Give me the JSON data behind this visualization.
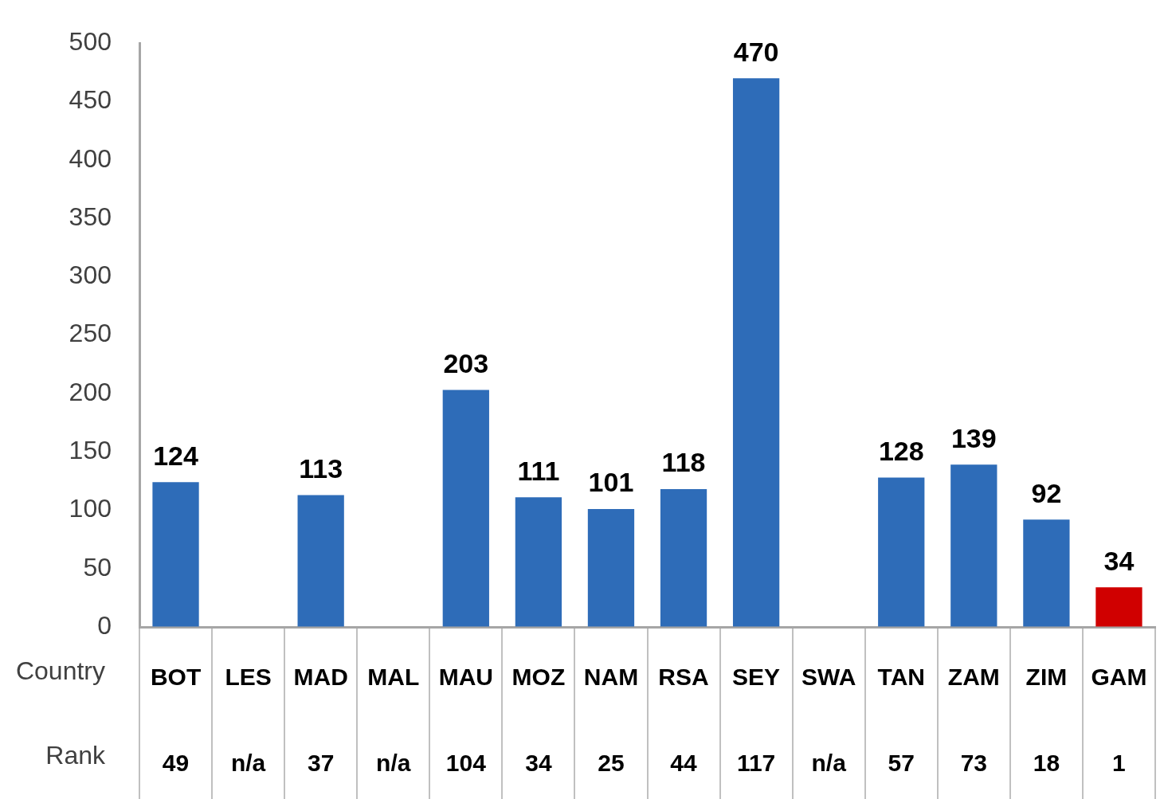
{
  "chart_data": {
    "type": "bar",
    "xlabel": "Country",
    "categories": [
      "BOT",
      "LES",
      "MAD",
      "MAL",
      "MAU",
      "MOZ",
      "NAM",
      "RSA",
      "SEY",
      "SWA",
      "TAN",
      "ZAM",
      "ZIM",
      "GAM"
    ],
    "values": [
      124,
      null,
      113,
      null,
      203,
      111,
      101,
      118,
      470,
      null,
      128,
      139,
      92,
      34
    ],
    "colors": [
      "#2e6cb8",
      "#2e6cb8",
      "#2e6cb8",
      "#2e6cb8",
      "#2e6cb8",
      "#2e6cb8",
      "#2e6cb8",
      "#2e6cb8",
      "#2e6cb8",
      "#2e6cb8",
      "#2e6cb8",
      "#2e6cb8",
      "#2e6cb8",
      "#d00000"
    ],
    "ylim": [
      0,
      500
    ],
    "yticks": [
      0,
      50,
      100,
      150,
      200,
      250,
      300,
      350,
      400,
      450,
      500
    ],
    "data_labels": true,
    "legend": false,
    "annotations": [
      "Rank",
      "49",
      "n/a",
      "37",
      "n/a",
      "104",
      "34",
      "25",
      "44",
      "117",
      "n/a",
      "57",
      "73",
      "18",
      "1"
    ]
  }
}
